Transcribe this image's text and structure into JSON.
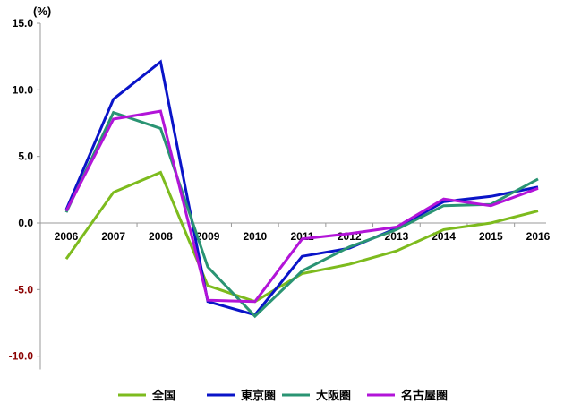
{
  "chart_data": {
    "type": "line",
    "unit_label": "(%)",
    "categories": [
      "2006",
      "2007",
      "2008",
      "2009",
      "2010",
      "2011",
      "2012",
      "2013",
      "2014",
      "2015",
      "2016"
    ],
    "y_ticks": [
      "15.0",
      "10.0",
      "5.0",
      "0.0",
      "-5.0",
      "-10.0"
    ],
    "ylim": [
      -11,
      15
    ],
    "grid": false,
    "legend_position": "bottom",
    "series": [
      {
        "name": "全国",
        "color": "#7dbb1e",
        "values": [
          -2.7,
          2.3,
          3.8,
          -4.7,
          -5.9,
          -3.8,
          -3.1,
          -2.1,
          -0.5,
          0.0,
          0.9
        ]
      },
      {
        "name": "東京圏",
        "color": "#0a14c8",
        "values": [
          1.0,
          9.3,
          12.1,
          -5.9,
          -6.9,
          -2.5,
          -1.9,
          -0.4,
          1.6,
          2.0,
          2.7
        ]
      },
      {
        "name": "大阪圏",
        "color": "#2a9473",
        "values": [
          0.8,
          8.3,
          7.1,
          -3.3,
          -7.0,
          -3.6,
          -1.8,
          -0.5,
          1.3,
          1.4,
          3.3
        ]
      },
      {
        "name": "名古屋圏",
        "color": "#b214d8",
        "values": [
          0.9,
          7.8,
          8.4,
          -5.8,
          -5.9,
          -1.2,
          -0.8,
          -0.3,
          1.8,
          1.3,
          2.6
        ]
      }
    ]
  }
}
